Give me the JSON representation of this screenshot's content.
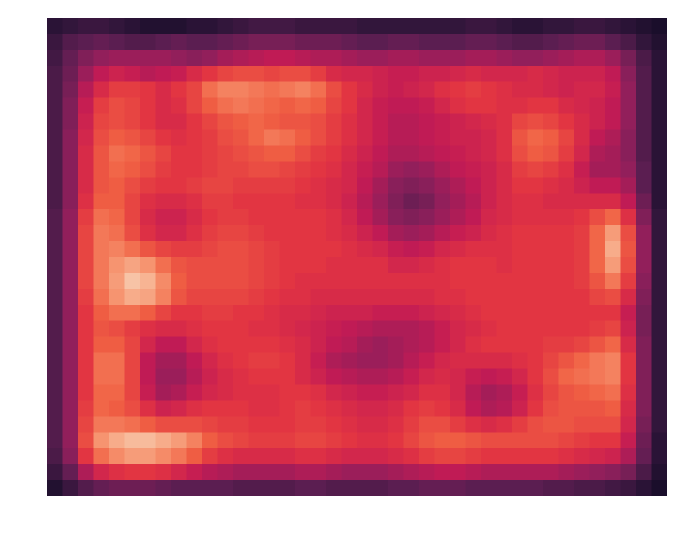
{
  "chart_data": {
    "type": "heatmap",
    "grid": "off",
    "axes_visible": false,
    "colormap": "rocket",
    "colormap_stops": [
      "#03051a",
      "#2e1539",
      "#5c1e51",
      "#8f1f5b",
      "#c21b55",
      "#e13342",
      "#f06043",
      "#f6936f",
      "#f7bfa0",
      "#faebdd"
    ],
    "rows": 30,
    "cols": 40,
    "value_range": [
      0,
      1
    ],
    "values": [
      [
        0.1,
        0.12,
        0.14,
        0.14,
        0.12,
        0.1,
        0.08,
        0.08,
        0.08,
        0.1,
        0.1,
        0.12,
        0.14,
        0.16,
        0.16,
        0.16,
        0.14,
        0.14,
        0.14,
        0.14,
        0.12,
        0.12,
        0.12,
        0.12,
        0.12,
        0.12,
        0.12,
        0.14,
        0.14,
        0.12,
        0.1,
        0.1,
        0.12,
        0.12,
        0.14,
        0.14,
        0.12,
        0.1,
        0.08,
        0.06
      ],
      [
        0.14,
        0.2,
        0.22,
        0.24,
        0.22,
        0.2,
        0.2,
        0.22,
        0.24,
        0.22,
        0.22,
        0.24,
        0.26,
        0.28,
        0.28,
        0.28,
        0.26,
        0.26,
        0.26,
        0.24,
        0.22,
        0.22,
        0.24,
        0.24,
        0.22,
        0.22,
        0.22,
        0.24,
        0.24,
        0.22,
        0.2,
        0.2,
        0.22,
        0.24,
        0.26,
        0.26,
        0.22,
        0.18,
        0.12,
        0.08
      ],
      [
        0.16,
        0.24,
        0.3,
        0.34,
        0.36,
        0.36,
        0.36,
        0.36,
        0.34,
        0.32,
        0.34,
        0.38,
        0.4,
        0.42,
        0.44,
        0.44,
        0.42,
        0.4,
        0.4,
        0.38,
        0.36,
        0.36,
        0.38,
        0.38,
        0.36,
        0.36,
        0.36,
        0.38,
        0.38,
        0.36,
        0.34,
        0.34,
        0.36,
        0.38,
        0.4,
        0.4,
        0.36,
        0.28,
        0.18,
        0.1
      ],
      [
        0.18,
        0.26,
        0.36,
        0.44,
        0.48,
        0.46,
        0.42,
        0.44,
        0.46,
        0.52,
        0.56,
        0.6,
        0.62,
        0.62,
        0.6,
        0.62,
        0.62,
        0.58,
        0.52,
        0.5,
        0.5,
        0.48,
        0.46,
        0.46,
        0.48,
        0.48,
        0.5,
        0.52,
        0.5,
        0.5,
        0.5,
        0.52,
        0.5,
        0.48,
        0.48,
        0.48,
        0.44,
        0.32,
        0.2,
        0.1
      ],
      [
        0.18,
        0.28,
        0.42,
        0.52,
        0.58,
        0.58,
        0.56,
        0.52,
        0.56,
        0.6,
        0.7,
        0.74,
        0.74,
        0.72,
        0.7,
        0.72,
        0.74,
        0.7,
        0.62,
        0.56,
        0.52,
        0.48,
        0.46,
        0.48,
        0.5,
        0.54,
        0.56,
        0.58,
        0.56,
        0.54,
        0.52,
        0.52,
        0.5,
        0.48,
        0.5,
        0.5,
        0.46,
        0.34,
        0.2,
        0.1
      ],
      [
        0.18,
        0.3,
        0.46,
        0.58,
        0.62,
        0.6,
        0.56,
        0.52,
        0.54,
        0.6,
        0.66,
        0.7,
        0.72,
        0.7,
        0.68,
        0.66,
        0.68,
        0.66,
        0.6,
        0.56,
        0.5,
        0.46,
        0.44,
        0.44,
        0.46,
        0.5,
        0.54,
        0.56,
        0.56,
        0.54,
        0.54,
        0.56,
        0.56,
        0.52,
        0.5,
        0.48,
        0.44,
        0.34,
        0.2,
        0.1
      ],
      [
        0.18,
        0.3,
        0.48,
        0.6,
        0.62,
        0.6,
        0.56,
        0.52,
        0.52,
        0.56,
        0.6,
        0.64,
        0.66,
        0.68,
        0.66,
        0.64,
        0.64,
        0.62,
        0.58,
        0.54,
        0.5,
        0.46,
        0.42,
        0.42,
        0.44,
        0.46,
        0.48,
        0.5,
        0.52,
        0.54,
        0.6,
        0.62,
        0.6,
        0.56,
        0.52,
        0.48,
        0.44,
        0.34,
        0.2,
        0.1
      ],
      [
        0.18,
        0.32,
        0.5,
        0.62,
        0.66,
        0.64,
        0.6,
        0.56,
        0.54,
        0.56,
        0.58,
        0.62,
        0.64,
        0.68,
        0.72,
        0.7,
        0.66,
        0.62,
        0.58,
        0.54,
        0.5,
        0.46,
        0.42,
        0.42,
        0.44,
        0.46,
        0.48,
        0.48,
        0.5,
        0.54,
        0.64,
        0.68,
        0.66,
        0.6,
        0.52,
        0.44,
        0.4,
        0.32,
        0.2,
        0.1
      ],
      [
        0.18,
        0.32,
        0.52,
        0.64,
        0.7,
        0.68,
        0.64,
        0.6,
        0.56,
        0.56,
        0.58,
        0.6,
        0.62,
        0.64,
        0.66,
        0.66,
        0.62,
        0.58,
        0.56,
        0.52,
        0.48,
        0.44,
        0.4,
        0.4,
        0.42,
        0.44,
        0.46,
        0.48,
        0.5,
        0.54,
        0.62,
        0.66,
        0.64,
        0.58,
        0.5,
        0.4,
        0.38,
        0.32,
        0.2,
        0.1
      ],
      [
        0.18,
        0.32,
        0.52,
        0.64,
        0.68,
        0.66,
        0.62,
        0.58,
        0.56,
        0.56,
        0.58,
        0.6,
        0.6,
        0.62,
        0.62,
        0.6,
        0.58,
        0.56,
        0.54,
        0.5,
        0.46,
        0.42,
        0.36,
        0.34,
        0.36,
        0.4,
        0.44,
        0.46,
        0.48,
        0.52,
        0.58,
        0.6,
        0.58,
        0.54,
        0.46,
        0.38,
        0.38,
        0.34,
        0.22,
        0.1
      ],
      [
        0.18,
        0.32,
        0.52,
        0.64,
        0.66,
        0.62,
        0.58,
        0.56,
        0.56,
        0.58,
        0.6,
        0.6,
        0.58,
        0.58,
        0.58,
        0.58,
        0.56,
        0.54,
        0.52,
        0.5,
        0.44,
        0.38,
        0.32,
        0.3,
        0.32,
        0.36,
        0.4,
        0.44,
        0.48,
        0.52,
        0.56,
        0.56,
        0.54,
        0.52,
        0.48,
        0.44,
        0.44,
        0.38,
        0.22,
        0.1
      ],
      [
        0.18,
        0.32,
        0.54,
        0.66,
        0.66,
        0.6,
        0.54,
        0.52,
        0.52,
        0.54,
        0.58,
        0.58,
        0.56,
        0.56,
        0.56,
        0.56,
        0.54,
        0.54,
        0.52,
        0.48,
        0.42,
        0.36,
        0.3,
        0.26,
        0.28,
        0.34,
        0.38,
        0.42,
        0.48,
        0.52,
        0.54,
        0.54,
        0.52,
        0.52,
        0.52,
        0.52,
        0.52,
        0.44,
        0.26,
        0.1
      ],
      [
        0.2,
        0.34,
        0.58,
        0.7,
        0.68,
        0.6,
        0.52,
        0.48,
        0.48,
        0.52,
        0.56,
        0.58,
        0.58,
        0.56,
        0.56,
        0.56,
        0.56,
        0.56,
        0.54,
        0.5,
        0.44,
        0.38,
        0.32,
        0.3,
        0.32,
        0.36,
        0.4,
        0.44,
        0.5,
        0.52,
        0.54,
        0.54,
        0.54,
        0.54,
        0.56,
        0.62,
        0.68,
        0.54,
        0.3,
        0.12
      ],
      [
        0.2,
        0.34,
        0.6,
        0.72,
        0.7,
        0.62,
        0.54,
        0.5,
        0.5,
        0.54,
        0.58,
        0.6,
        0.6,
        0.58,
        0.56,
        0.56,
        0.56,
        0.56,
        0.54,
        0.52,
        0.48,
        0.44,
        0.38,
        0.36,
        0.38,
        0.42,
        0.46,
        0.48,
        0.52,
        0.54,
        0.56,
        0.56,
        0.56,
        0.56,
        0.58,
        0.68,
        0.8,
        0.62,
        0.34,
        0.12
      ],
      [
        0.2,
        0.34,
        0.6,
        0.72,
        0.74,
        0.7,
        0.64,
        0.6,
        0.58,
        0.58,
        0.6,
        0.62,
        0.62,
        0.6,
        0.58,
        0.56,
        0.56,
        0.56,
        0.56,
        0.54,
        0.52,
        0.5,
        0.46,
        0.44,
        0.46,
        0.5,
        0.52,
        0.54,
        0.54,
        0.54,
        0.56,
        0.56,
        0.56,
        0.56,
        0.58,
        0.68,
        0.84,
        0.64,
        0.34,
        0.12
      ],
      [
        0.2,
        0.34,
        0.6,
        0.72,
        0.78,
        0.82,
        0.78,
        0.7,
        0.64,
        0.62,
        0.62,
        0.62,
        0.62,
        0.6,
        0.58,
        0.56,
        0.56,
        0.56,
        0.54,
        0.54,
        0.54,
        0.54,
        0.5,
        0.5,
        0.52,
        0.54,
        0.56,
        0.56,
        0.56,
        0.54,
        0.56,
        0.56,
        0.56,
        0.56,
        0.58,
        0.68,
        0.8,
        0.62,
        0.34,
        0.12
      ],
      [
        0.2,
        0.34,
        0.6,
        0.72,
        0.8,
        0.9,
        0.86,
        0.76,
        0.66,
        0.62,
        0.62,
        0.62,
        0.62,
        0.6,
        0.58,
        0.56,
        0.54,
        0.54,
        0.54,
        0.54,
        0.54,
        0.54,
        0.54,
        0.54,
        0.54,
        0.54,
        0.56,
        0.56,
        0.56,
        0.56,
        0.56,
        0.56,
        0.56,
        0.56,
        0.58,
        0.64,
        0.72,
        0.58,
        0.32,
        0.12
      ],
      [
        0.2,
        0.34,
        0.58,
        0.7,
        0.78,
        0.84,
        0.82,
        0.74,
        0.64,
        0.6,
        0.6,
        0.6,
        0.6,
        0.58,
        0.56,
        0.54,
        0.54,
        0.52,
        0.52,
        0.52,
        0.52,
        0.52,
        0.52,
        0.52,
        0.52,
        0.54,
        0.54,
        0.56,
        0.56,
        0.56,
        0.56,
        0.56,
        0.56,
        0.56,
        0.56,
        0.6,
        0.62,
        0.52,
        0.3,
        0.12
      ],
      [
        0.2,
        0.34,
        0.56,
        0.66,
        0.7,
        0.7,
        0.66,
        0.6,
        0.56,
        0.56,
        0.58,
        0.58,
        0.56,
        0.56,
        0.54,
        0.52,
        0.52,
        0.5,
        0.48,
        0.48,
        0.48,
        0.46,
        0.46,
        0.46,
        0.48,
        0.5,
        0.52,
        0.54,
        0.56,
        0.56,
        0.56,
        0.56,
        0.56,
        0.56,
        0.56,
        0.56,
        0.56,
        0.46,
        0.28,
        0.12
      ],
      [
        0.2,
        0.34,
        0.56,
        0.64,
        0.62,
        0.58,
        0.54,
        0.52,
        0.52,
        0.54,
        0.56,
        0.56,
        0.56,
        0.54,
        0.54,
        0.52,
        0.5,
        0.48,
        0.46,
        0.44,
        0.42,
        0.4,
        0.4,
        0.4,
        0.42,
        0.46,
        0.5,
        0.52,
        0.54,
        0.56,
        0.56,
        0.56,
        0.56,
        0.56,
        0.56,
        0.58,
        0.6,
        0.48,
        0.28,
        0.12
      ],
      [
        0.2,
        0.34,
        0.56,
        0.66,
        0.66,
        0.6,
        0.5,
        0.44,
        0.44,
        0.5,
        0.54,
        0.56,
        0.56,
        0.56,
        0.56,
        0.54,
        0.52,
        0.48,
        0.44,
        0.42,
        0.38,
        0.36,
        0.38,
        0.4,
        0.42,
        0.46,
        0.5,
        0.54,
        0.56,
        0.56,
        0.56,
        0.56,
        0.58,
        0.58,
        0.6,
        0.64,
        0.68,
        0.52,
        0.3,
        0.12
      ],
      [
        0.2,
        0.34,
        0.56,
        0.7,
        0.7,
        0.6,
        0.44,
        0.38,
        0.38,
        0.44,
        0.5,
        0.54,
        0.56,
        0.58,
        0.58,
        0.56,
        0.52,
        0.46,
        0.4,
        0.38,
        0.36,
        0.36,
        0.38,
        0.42,
        0.46,
        0.5,
        0.52,
        0.52,
        0.52,
        0.52,
        0.54,
        0.56,
        0.6,
        0.64,
        0.68,
        0.72,
        0.74,
        0.56,
        0.3,
        0.12
      ],
      [
        0.2,
        0.34,
        0.56,
        0.7,
        0.7,
        0.6,
        0.44,
        0.36,
        0.36,
        0.42,
        0.48,
        0.52,
        0.54,
        0.56,
        0.56,
        0.56,
        0.52,
        0.48,
        0.44,
        0.42,
        0.4,
        0.4,
        0.42,
        0.46,
        0.5,
        0.52,
        0.5,
        0.46,
        0.44,
        0.46,
        0.5,
        0.56,
        0.62,
        0.68,
        0.7,
        0.72,
        0.74,
        0.56,
        0.3,
        0.12
      ],
      [
        0.2,
        0.34,
        0.56,
        0.68,
        0.68,
        0.6,
        0.46,
        0.38,
        0.4,
        0.46,
        0.5,
        0.52,
        0.54,
        0.54,
        0.54,
        0.56,
        0.56,
        0.54,
        0.5,
        0.48,
        0.46,
        0.46,
        0.48,
        0.5,
        0.54,
        0.54,
        0.5,
        0.42,
        0.38,
        0.4,
        0.46,
        0.54,
        0.6,
        0.64,
        0.66,
        0.68,
        0.7,
        0.54,
        0.3,
        0.12
      ],
      [
        0.2,
        0.34,
        0.58,
        0.68,
        0.66,
        0.62,
        0.54,
        0.48,
        0.5,
        0.54,
        0.56,
        0.56,
        0.56,
        0.54,
        0.54,
        0.56,
        0.58,
        0.56,
        0.54,
        0.52,
        0.5,
        0.5,
        0.52,
        0.56,
        0.58,
        0.56,
        0.52,
        0.44,
        0.4,
        0.42,
        0.48,
        0.56,
        0.62,
        0.64,
        0.64,
        0.64,
        0.66,
        0.52,
        0.3,
        0.12
      ],
      [
        0.2,
        0.34,
        0.6,
        0.72,
        0.72,
        0.7,
        0.66,
        0.62,
        0.62,
        0.62,
        0.6,
        0.58,
        0.58,
        0.56,
        0.56,
        0.56,
        0.58,
        0.58,
        0.56,
        0.54,
        0.52,
        0.52,
        0.54,
        0.58,
        0.62,
        0.62,
        0.58,
        0.54,
        0.52,
        0.54,
        0.58,
        0.62,
        0.64,
        0.64,
        0.62,
        0.62,
        0.62,
        0.5,
        0.28,
        0.12
      ],
      [
        0.2,
        0.34,
        0.62,
        0.78,
        0.84,
        0.88,
        0.88,
        0.84,
        0.8,
        0.74,
        0.66,
        0.62,
        0.6,
        0.58,
        0.58,
        0.58,
        0.6,
        0.6,
        0.58,
        0.56,
        0.54,
        0.54,
        0.56,
        0.6,
        0.64,
        0.66,
        0.66,
        0.64,
        0.62,
        0.62,
        0.62,
        0.62,
        0.62,
        0.6,
        0.58,
        0.56,
        0.56,
        0.46,
        0.26,
        0.1
      ],
      [
        0.18,
        0.32,
        0.56,
        0.7,
        0.76,
        0.8,
        0.8,
        0.76,
        0.72,
        0.66,
        0.58,
        0.54,
        0.52,
        0.52,
        0.52,
        0.52,
        0.54,
        0.54,
        0.52,
        0.5,
        0.5,
        0.5,
        0.52,
        0.54,
        0.58,
        0.6,
        0.6,
        0.58,
        0.56,
        0.56,
        0.56,
        0.56,
        0.56,
        0.54,
        0.52,
        0.5,
        0.48,
        0.4,
        0.24,
        0.1
      ],
      [
        0.14,
        0.24,
        0.4,
        0.5,
        0.54,
        0.56,
        0.56,
        0.54,
        0.5,
        0.46,
        0.42,
        0.4,
        0.38,
        0.38,
        0.38,
        0.38,
        0.4,
        0.4,
        0.38,
        0.36,
        0.36,
        0.36,
        0.38,
        0.4,
        0.42,
        0.44,
        0.44,
        0.42,
        0.4,
        0.4,
        0.4,
        0.4,
        0.4,
        0.38,
        0.36,
        0.34,
        0.32,
        0.28,
        0.18,
        0.08
      ],
      [
        0.08,
        0.14,
        0.2,
        0.24,
        0.26,
        0.26,
        0.26,
        0.24,
        0.22,
        0.22,
        0.22,
        0.22,
        0.2,
        0.2,
        0.2,
        0.2,
        0.22,
        0.22,
        0.2,
        0.2,
        0.2,
        0.2,
        0.22,
        0.22,
        0.24,
        0.24,
        0.24,
        0.22,
        0.22,
        0.22,
        0.22,
        0.22,
        0.2,
        0.2,
        0.18,
        0.18,
        0.16,
        0.14,
        0.1,
        0.06
      ]
    ]
  }
}
